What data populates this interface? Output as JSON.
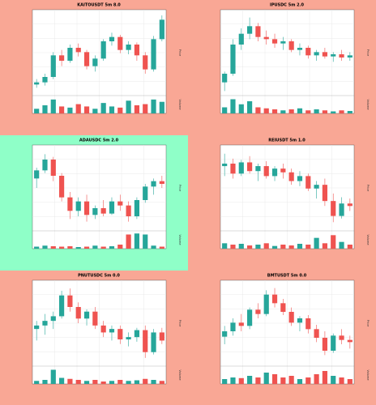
{
  "chart_data": [
    {
      "type": "candlestick",
      "title": "KAITOUSDT 5m 8.0",
      "background": "#f9a795",
      "ylabel": "Price",
      "vlabel": "Volume",
      "ylim": [
        20,
        95
      ],
      "vlim": [
        0,
        70
      ],
      "up_color": "#26a69a",
      "down_color": "#ef5350",
      "candles": [
        [
          28,
          33,
          25,
          30
        ],
        [
          30,
          38,
          27,
          35
        ],
        [
          35,
          58,
          33,
          55
        ],
        [
          55,
          60,
          45,
          50
        ],
        [
          50,
          65,
          48,
          62
        ],
        [
          62,
          66,
          54,
          58
        ],
        [
          58,
          60,
          42,
          45
        ],
        [
          45,
          55,
          40,
          52
        ],
        [
          52,
          70,
          50,
          68
        ],
        [
          68,
          76,
          64,
          72
        ],
        [
          72,
          74,
          57,
          60
        ],
        [
          60,
          68,
          56,
          65
        ],
        [
          65,
          67,
          50,
          55
        ],
        [
          55,
          58,
          38,
          42
        ],
        [
          42,
          73,
          40,
          70
        ],
        [
          70,
          92,
          68,
          88
        ]
      ],
      "volume": [
        20,
        35,
        60,
        30,
        25,
        40,
        30,
        20,
        45,
        30,
        25,
        55,
        35,
        40,
        60,
        50
      ]
    },
    {
      "type": "candlestick",
      "title": "IPUSDC 5m 2.0",
      "background": "#f9a795",
      "ylabel": "Price",
      "vlabel": "Volume",
      "ylim": [
        20,
        95
      ],
      "vlim": [
        0,
        80
      ],
      "up_color": "#26a69a",
      "down_color": "#ef5350",
      "candles": [
        [
          30,
          40,
          22,
          38
        ],
        [
          38,
          70,
          36,
          65
        ],
        [
          65,
          80,
          60,
          75
        ],
        [
          75,
          90,
          70,
          82
        ],
        [
          82,
          85,
          68,
          72
        ],
        [
          72,
          78,
          65,
          70
        ],
        [
          70,
          75,
          62,
          66
        ],
        [
          66,
          72,
          60,
          68
        ],
        [
          68,
          70,
          58,
          60
        ],
        [
          60,
          66,
          55,
          62
        ],
        [
          62,
          64,
          52,
          55
        ],
        [
          55,
          60,
          50,
          58
        ],
        [
          58,
          62,
          52,
          54
        ],
        [
          54,
          58,
          49,
          56
        ],
        [
          56,
          60,
          50,
          53
        ],
        [
          53,
          58,
          50,
          55
        ]
      ],
      "volume": [
        30,
        70,
        45,
        60,
        30,
        25,
        20,
        15,
        20,
        25,
        15,
        20,
        15,
        10,
        15,
        12
      ]
    },
    {
      "type": "candlestick",
      "title": "ADAUSDC 5m 2.0",
      "background": "#8fffc8",
      "ylabel": "Price",
      "vlabel": "Volume",
      "ylim": [
        35,
        95
      ],
      "vlim": [
        0,
        80
      ],
      "up_color": "#26a69a",
      "down_color": "#ef5350",
      "candles": [
        [
          72,
          80,
          65,
          78
        ],
        [
          78,
          90,
          76,
          86
        ],
        [
          86,
          88,
          70,
          74
        ],
        [
          74,
          76,
          55,
          58
        ],
        [
          58,
          62,
          42,
          48
        ],
        [
          48,
          58,
          44,
          55
        ],
        [
          55,
          60,
          40,
          45
        ],
        [
          45,
          52,
          42,
          50
        ],
        [
          50,
          56,
          44,
          46
        ],
        [
          46,
          58,
          45,
          55
        ],
        [
          55,
          60,
          48,
          52
        ],
        [
          52,
          55,
          40,
          44
        ],
        [
          44,
          58,
          42,
          56
        ],
        [
          56,
          68,
          54,
          66
        ],
        [
          66,
          72,
          60,
          70
        ],
        [
          70,
          74,
          65,
          68
        ]
      ],
      "volume": [
        10,
        15,
        12,
        10,
        12,
        8,
        10,
        15,
        10,
        12,
        20,
        70,
        75,
        70,
        15,
        10
      ]
    },
    {
      "type": "candlestick",
      "title": "REIUSDT 5m 1.0",
      "background": "#f9a795",
      "ylabel": "Price",
      "vlabel": "Volume",
      "ylim": [
        20,
        85
      ],
      "vlim": [
        0,
        60
      ],
      "up_color": "#26a69a",
      "down_color": "#ef5350",
      "candles": [
        [
          70,
          80,
          62,
          72
        ],
        [
          72,
          76,
          60,
          64
        ],
        [
          64,
          75,
          62,
          73
        ],
        [
          73,
          78,
          64,
          66
        ],
        [
          66,
          72,
          58,
          70
        ],
        [
          70,
          74,
          60,
          62
        ],
        [
          62,
          70,
          58,
          68
        ],
        [
          68,
          72,
          60,
          65
        ],
        [
          65,
          68,
          55,
          58
        ],
        [
          58,
          66,
          54,
          62
        ],
        [
          62,
          64,
          50,
          52
        ],
        [
          52,
          58,
          44,
          55
        ],
        [
          55,
          60,
          38,
          42
        ],
        [
          42,
          48,
          25,
          30
        ],
        [
          30,
          45,
          28,
          40
        ],
        [
          40,
          44,
          34,
          38
        ]
      ],
      "volume": [
        20,
        15,
        18,
        12,
        15,
        20,
        10,
        15,
        12,
        18,
        15,
        40,
        20,
        50,
        25,
        15
      ]
    },
    {
      "type": "candlestick",
      "title": "PNUTUSDC 5m 0.0",
      "background": "#f9a795",
      "ylabel": "Price",
      "vlabel": "Volume",
      "ylim": [
        25,
        95
      ],
      "vlim": [
        0,
        80
      ],
      "up_color": "#26a69a",
      "down_color": "#ef5350",
      "candles": [
        [
          55,
          62,
          45,
          58
        ],
        [
          58,
          68,
          50,
          62
        ],
        [
          62,
          70,
          55,
          66
        ],
        [
          66,
          88,
          64,
          84
        ],
        [
          84,
          90,
          70,
          74
        ],
        [
          74,
          78,
          60,
          64
        ],
        [
          64,
          72,
          58,
          70
        ],
        [
          70,
          74,
          55,
          58
        ],
        [
          58,
          62,
          48,
          52
        ],
        [
          52,
          58,
          45,
          55
        ],
        [
          55,
          58,
          42,
          46
        ],
        [
          46,
          52,
          40,
          48
        ],
        [
          48,
          56,
          44,
          54
        ],
        [
          54,
          58,
          30,
          35
        ],
        [
          35,
          55,
          33,
          52
        ],
        [
          52,
          56,
          42,
          45
        ]
      ],
      "volume": [
        15,
        20,
        70,
        30,
        25,
        20,
        15,
        20,
        12,
        15,
        20,
        15,
        18,
        25,
        20,
        15
      ]
    },
    {
      "type": "candlestick",
      "title": "BMTUSDT 5m 0.0",
      "background": "#f9a795",
      "ylabel": "Price",
      "vlabel": "Volume",
      "ylim": [
        20,
        95
      ],
      "vlim": [
        0,
        50
      ],
      "up_color": "#26a69a",
      "down_color": "#ef5350",
      "candles": [
        [
          45,
          55,
          38,
          50
        ],
        [
          50,
          62,
          46,
          58
        ],
        [
          58,
          66,
          50,
          55
        ],
        [
          55,
          72,
          52,
          70
        ],
        [
          70,
          76,
          62,
          66
        ],
        [
          66,
          88,
          64,
          84
        ],
        [
          84,
          90,
          72,
          76
        ],
        [
          76,
          80,
          65,
          68
        ],
        [
          68,
          72,
          55,
          58
        ],
        [
          58,
          64,
          50,
          62
        ],
        [
          62,
          65,
          48,
          52
        ],
        [
          52,
          56,
          40,
          44
        ],
        [
          44,
          50,
          28,
          32
        ],
        [
          32,
          48,
          30,
          46
        ],
        [
          46,
          52,
          38,
          42
        ],
        [
          42,
          46,
          34,
          40
        ]
      ],
      "volume": [
        15,
        20,
        18,
        25,
        20,
        35,
        30,
        20,
        25,
        15,
        20,
        30,
        40,
        25,
        20,
        15
      ]
    }
  ]
}
